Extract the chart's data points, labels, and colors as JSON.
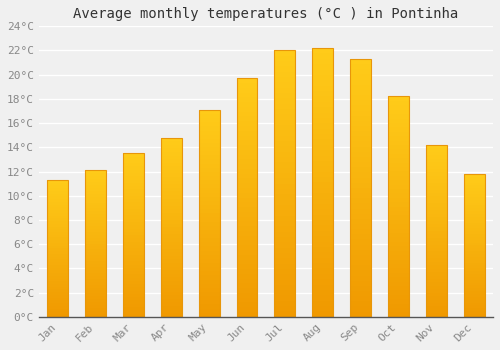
{
  "title": "Average monthly temperatures (°C ) in Pontinha",
  "months": [
    "Jan",
    "Feb",
    "Mar",
    "Apr",
    "May",
    "Jun",
    "Jul",
    "Aug",
    "Sep",
    "Oct",
    "Nov",
    "Dec"
  ],
  "temperatures": [
    11.3,
    12.1,
    13.5,
    14.8,
    17.1,
    19.7,
    22.0,
    22.2,
    21.3,
    18.2,
    14.2,
    11.8
  ],
  "bar_color": "#FFC125",
  "bar_edge_color": "#E8960A",
  "bar_bottom_color": "#F5A800",
  "ylim": [
    0,
    24
  ],
  "ytick_step": 2,
  "background_color": "#f0f0f0",
  "plot_bg_color": "#f0f0f0",
  "grid_color": "#ffffff",
  "title_fontsize": 10,
  "tick_fontsize": 8,
  "font_family": "monospace",
  "bar_width": 0.55,
  "figsize": [
    5.0,
    3.5
  ],
  "dpi": 100
}
